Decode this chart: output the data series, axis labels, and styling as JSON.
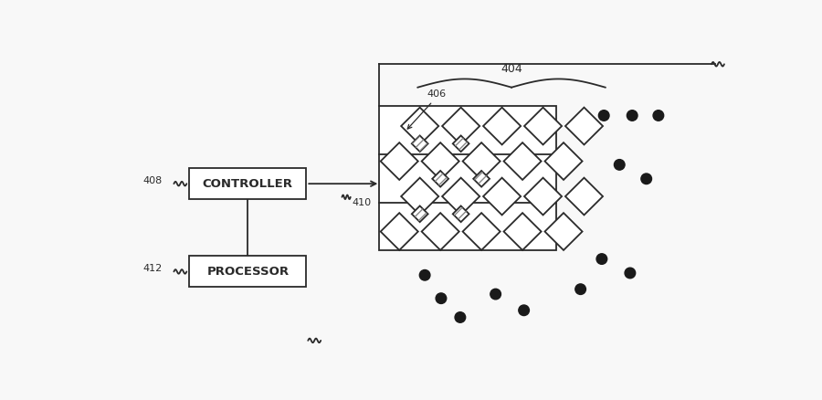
{
  "bg_color": "#f8f8f8",
  "line_color": "#2a2a2a",
  "box_color": "#ffffff",
  "hatch_color": "#aaaaaa",
  "dot_color": "#1a1a1a",
  "controller_label": "CONTROLLER",
  "processor_label": "PROCESSOR",
  "label_408": "408",
  "label_412": "412",
  "label_410": "410",
  "label_404": "404",
  "label_406": "406"
}
